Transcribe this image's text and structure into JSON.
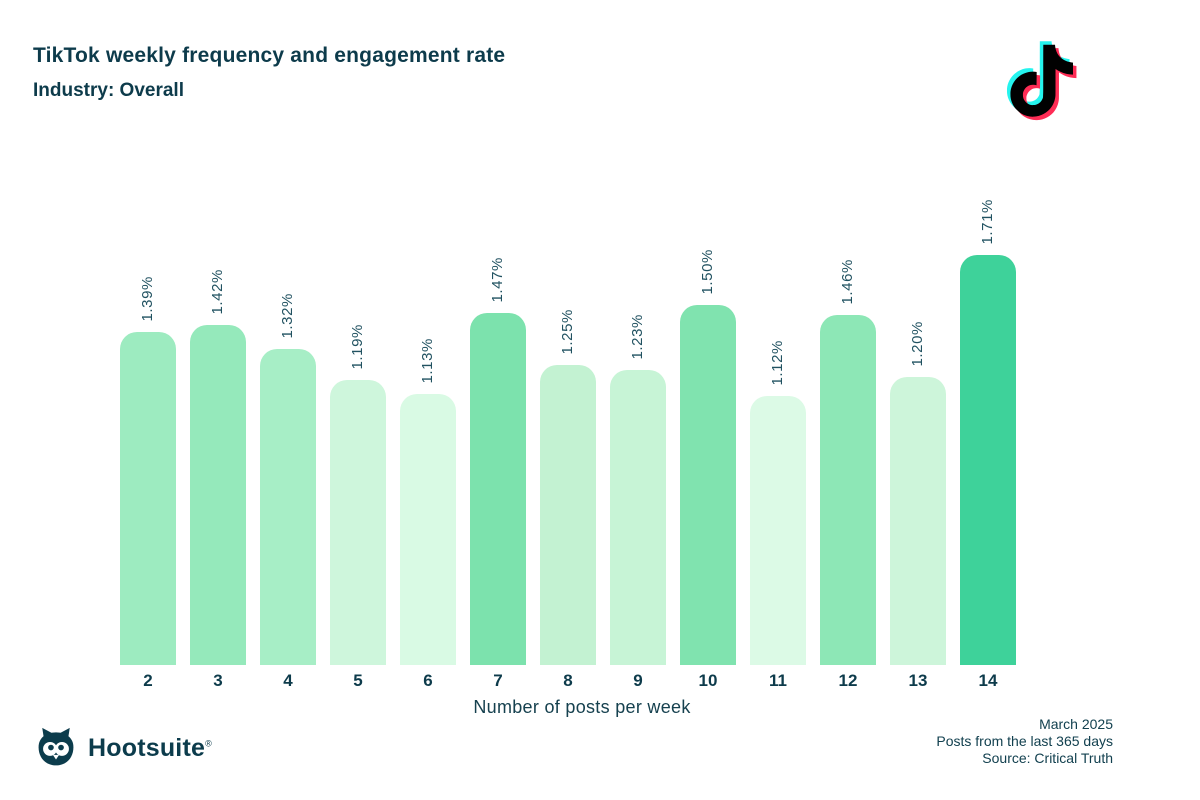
{
  "header": {
    "title": "TikTok weekly frequency and engagement rate",
    "subtitle": "Industry: Overall"
  },
  "chart_data": {
    "type": "bar",
    "title": "TikTok weekly frequency and engagement rate",
    "subtitle": "Industry: Overall",
    "xlabel": "Number of posts per week",
    "ylabel": "Engagement rate",
    "ylim": [
      0,
      1.8
    ],
    "grid": false,
    "legend": false,
    "categories": [
      "2",
      "3",
      "4",
      "5",
      "6",
      "7",
      "8",
      "9",
      "10",
      "11",
      "12",
      "13",
      "14"
    ],
    "values": [
      1.39,
      1.42,
      1.32,
      1.19,
      1.13,
      1.47,
      1.25,
      1.23,
      1.5,
      1.12,
      1.46,
      1.2,
      1.71
    ],
    "value_labels": [
      "1.39%",
      "1.42%",
      "1.32%",
      "1.19%",
      "1.13%",
      "1.47%",
      "1.25%",
      "1.23%",
      "1.50%",
      "1.12%",
      "1.46%",
      "1.20%",
      "1.71%"
    ],
    "bar_colors": [
      "#9debc0",
      "#95e9bb",
      "#a7eec6",
      "#cef6dc",
      "#d9fae4",
      "#7ce2ad",
      "#c3f2d2",
      "#c7f4d6",
      "#80e3af",
      "#dcfae6",
      "#8de7b6",
      "#cdf5da",
      "#3ed29a"
    ],
    "dotted": [
      false,
      false,
      false,
      false,
      true,
      true,
      false,
      false,
      false,
      false,
      false,
      true,
      false
    ]
  },
  "footer": {
    "brand": "Hootsuite",
    "registered": "®",
    "lines": [
      "March 2025",
      "Posts from the last 365 days",
      "Source: Critical Truth"
    ]
  },
  "colors": {
    "text_dark": "#0d3b4b",
    "value_label": "#215261",
    "max_bar": "#3ed29a",
    "tiktok_cyan": "#25f4ee",
    "tiktok_red": "#fe2c55",
    "tiktok_black": "#010101"
  }
}
